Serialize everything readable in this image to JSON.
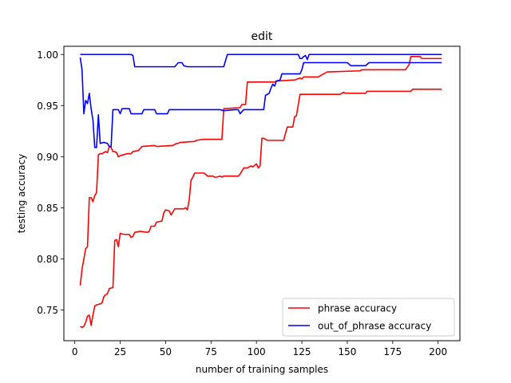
{
  "chart_data": {
    "type": "line",
    "title": "edit",
    "xlabel": "number of training samples",
    "ylabel": "testing accuracy",
    "xlim": [
      -6,
      212
    ],
    "ylim": [
      0.72,
      1.008
    ],
    "xticks": [
      0,
      25,
      50,
      75,
      100,
      125,
      150,
      175,
      200
    ],
    "xtick_labels": [
      "0",
      "25",
      "50",
      "75",
      "100",
      "125",
      "150",
      "175",
      "200"
    ],
    "yticks": [
      0.75,
      0.8,
      0.85,
      0.9,
      0.95,
      1.0
    ],
    "ytick_labels": [
      "0.75",
      "0.80",
      "0.85",
      "0.90",
      "0.95",
      "1.00"
    ],
    "grid": false,
    "legend_position": "lower-right",
    "series": [
      {
        "name": "phrase accuracy",
        "color": "#ff0000",
        "points": [
          [
            3,
            0.734
          ],
          [
            4,
            0.733
          ],
          [
            5,
            0.734
          ],
          [
            6,
            0.738
          ],
          [
            7,
            0.744
          ],
          [
            8,
            0.745
          ],
          [
            9,
            0.735
          ],
          [
            10,
            0.745
          ],
          [
            11,
            0.754
          ],
          [
            12,
            0.755
          ],
          [
            14,
            0.756
          ],
          [
            15,
            0.757
          ],
          [
            16,
            0.763
          ],
          [
            17,
            0.765
          ],
          [
            18,
            0.766
          ],
          [
            19,
            0.771
          ],
          [
            21,
            0.772
          ],
          [
            22,
            0.818
          ],
          [
            23,
            0.819
          ],
          [
            24,
            0.812
          ],
          [
            25,
            0.825
          ],
          [
            27,
            0.824
          ],
          [
            30,
            0.824
          ],
          [
            31,
            0.821
          ],
          [
            32,
            0.822
          ],
          [
            33,
            0.826
          ],
          [
            36,
            0.827
          ],
          [
            40,
            0.826
          ],
          [
            41,
            0.827
          ],
          [
            42,
            0.832
          ],
          [
            44,
            0.832
          ],
          [
            45,
            0.836
          ],
          [
            48,
            0.837
          ],
          [
            49,
            0.845
          ],
          [
            50,
            0.848
          ],
          [
            52,
            0.847
          ],
          [
            53,
            0.843
          ],
          [
            55,
            0.849
          ],
          [
            60,
            0.849
          ],
          [
            61,
            0.85
          ],
          [
            62,
            0.848
          ],
          [
            63,
            0.858
          ],
          [
            64,
            0.877
          ],
          [
            65,
            0.88
          ],
          [
            66,
            0.884
          ],
          [
            71,
            0.884
          ],
          [
            72,
            0.883
          ],
          [
            73,
            0.881
          ],
          [
            76,
            0.881
          ],
          [
            77,
            0.88
          ],
          [
            78,
            0.88
          ],
          [
            80,
            0.881
          ],
          [
            81,
            0.88
          ],
          [
            82,
            0.881
          ],
          [
            85,
            0.881
          ],
          [
            86,
            0.881
          ],
          [
            90,
            0.881
          ],
          [
            91,
            0.883
          ],
          [
            93,
            0.889
          ],
          [
            95,
            0.889
          ],
          [
            97,
            0.891
          ],
          [
            98,
            0.89
          ],
          [
            100,
            0.893
          ],
          [
            101,
            0.889
          ],
          [
            102,
            0.891
          ],
          [
            103,
            0.918
          ],
          [
            104,
            0.918
          ],
          [
            106,
            0.916
          ],
          [
            114,
            0.916
          ],
          [
            115,
            0.916
          ],
          [
            116,
            0.923
          ],
          [
            117,
            0.929
          ],
          [
            120,
            0.929
          ],
          [
            121,
            0.939
          ],
          [
            122,
            0.94
          ],
          [
            124,
            0.961
          ],
          [
            145,
            0.961
          ],
          [
            146,
            0.961
          ],
          [
            148,
            0.963
          ],
          [
            149,
            0.962
          ],
          [
            160,
            0.962
          ],
          [
            161,
            0.964
          ],
          [
            185,
            0.964
          ],
          [
            186,
            0.966
          ],
          [
            202,
            0.966
          ]
        ]
      },
      {
        "name": "phrase accuracy (upper)",
        "color": "#ff0000",
        "points": [
          [
            3,
            0.774
          ],
          [
            4,
            0.79
          ],
          [
            5,
            0.8
          ],
          [
            6,
            0.81
          ],
          [
            7,
            0.812
          ],
          [
            8,
            0.86
          ],
          [
            9,
            0.86
          ],
          [
            10,
            0.856
          ],
          [
            11,
            0.862
          ],
          [
            12,
            0.865
          ],
          [
            13,
            0.902
          ],
          [
            14,
            0.903
          ],
          [
            15,
            0.903
          ],
          [
            16,
            0.904
          ],
          [
            17,
            0.905
          ],
          [
            18,
            0.904
          ],
          [
            19,
            0.91
          ],
          [
            20,
            0.909
          ],
          [
            21,
            0.905
          ],
          [
            22,
            0.905
          ],
          [
            23,
            0.904
          ],
          [
            24,
            0.9
          ],
          [
            25,
            0.901
          ],
          [
            27,
            0.902
          ],
          [
            29,
            0.903
          ],
          [
            31,
            0.903
          ],
          [
            32,
            0.905
          ],
          [
            35,
            0.906
          ],
          [
            36,
            0.908
          ],
          [
            37,
            0.91
          ],
          [
            44,
            0.911
          ],
          [
            45,
            0.91
          ],
          [
            54,
            0.911
          ],
          [
            55,
            0.912
          ],
          [
            56,
            0.913
          ],
          [
            57,
            0.913
          ],
          [
            58,
            0.914
          ],
          [
            59,
            0.914
          ],
          [
            66,
            0.915
          ],
          [
            67,
            0.916
          ],
          [
            71,
            0.917
          ],
          [
            81,
            0.917
          ],
          [
            82,
            0.947
          ],
          [
            91,
            0.948
          ],
          [
            92,
            0.951
          ],
          [
            94,
            0.951
          ],
          [
            95,
            0.973
          ],
          [
            110,
            0.973
          ],
          [
            111,
            0.974
          ],
          [
            120,
            0.975
          ],
          [
            121,
            0.975
          ],
          [
            124,
            0.977
          ],
          [
            125,
            0.976
          ],
          [
            126,
            0.978
          ],
          [
            127,
            0.978
          ],
          [
            134,
            0.978
          ],
          [
            136,
            0.98
          ],
          [
            137,
            0.981
          ],
          [
            139,
            0.983
          ],
          [
            140,
            0.983
          ],
          [
            157,
            0.984
          ],
          [
            158,
            0.985
          ],
          [
            182,
            0.985
          ],
          [
            184,
            0.99
          ],
          [
            185,
            0.998
          ],
          [
            186,
            0.998
          ],
          [
            190,
            0.998
          ],
          [
            191,
            0.996
          ],
          [
            202,
            0.996
          ]
        ]
      },
      {
        "name": "out_of_phrase accuracy",
        "color": "#0000ff",
        "points": [
          [
            3,
            1.0
          ],
          [
            31,
            1.0
          ],
          [
            32,
            0.999
          ],
          [
            33,
            0.988
          ],
          [
            55,
            0.988
          ],
          [
            57,
            0.992
          ],
          [
            59,
            0.992
          ],
          [
            60,
            0.989
          ],
          [
            62,
            0.988
          ],
          [
            63,
            0.988
          ],
          [
            82,
            0.988
          ],
          [
            84,
            1.0
          ],
          [
            123,
            1.0
          ],
          [
            124,
            0.996
          ],
          [
            125,
            0.996
          ],
          [
            126,
            0.998
          ],
          [
            127,
            0.999
          ],
          [
            128,
            0.995
          ],
          [
            129,
            1.0
          ],
          [
            202,
            1.0
          ]
        ]
      },
      {
        "name": "out_of_phrase accuracy (lower)",
        "color": "#0000ff",
        "points": [
          [
            3,
            0.997
          ],
          [
            4,
            0.985
          ],
          [
            5,
            0.942
          ],
          [
            6,
            0.955
          ],
          [
            7,
            0.952
          ],
          [
            8,
            0.962
          ],
          [
            9,
            0.947
          ],
          [
            10,
            0.936
          ],
          [
            11,
            0.909
          ],
          [
            12,
            0.909
          ],
          [
            13,
            0.941
          ],
          [
            14,
            0.913
          ],
          [
            16,
            0.914
          ],
          [
            18,
            0.913
          ],
          [
            19,
            0.91
          ],
          [
            20,
            0.91
          ],
          [
            21,
            0.946
          ],
          [
            24,
            0.946
          ],
          [
            25,
            0.942
          ],
          [
            26,
            0.947
          ],
          [
            30,
            0.947
          ],
          [
            31,
            0.942
          ],
          [
            37,
            0.942
          ],
          [
            38,
            0.946
          ],
          [
            44,
            0.946
          ],
          [
            45,
            0.942
          ],
          [
            51,
            0.942
          ],
          [
            52,
            0.946
          ],
          [
            60,
            0.946
          ],
          [
            62,
            0.946
          ],
          [
            80,
            0.946
          ],
          [
            82,
            0.945
          ],
          [
            88,
            0.946
          ],
          [
            89,
            0.946
          ],
          [
            90,
            0.946
          ],
          [
            91,
            0.942
          ],
          [
            93,
            0.946
          ],
          [
            100,
            0.946
          ],
          [
            104,
            0.946
          ],
          [
            105,
            0.96
          ],
          [
            107,
            0.962
          ],
          [
            108,
            0.967
          ],
          [
            109,
            0.971
          ],
          [
            110,
            0.969
          ],
          [
            111,
            0.974
          ],
          [
            113,
            0.975
          ],
          [
            114,
            0.981
          ],
          [
            124,
            0.981
          ],
          [
            125,
            0.985
          ],
          [
            126,
            0.992
          ],
          [
            130,
            0.992
          ],
          [
            150,
            0.992
          ],
          [
            152,
            0.989
          ],
          [
            160,
            0.989
          ],
          [
            162,
            0.992
          ],
          [
            202,
            0.992
          ]
        ]
      }
    ],
    "legend": [
      {
        "label": "phrase accuracy",
        "color": "#ff0000"
      },
      {
        "label": "out_of_phrase accuracy",
        "color": "#0000ff"
      }
    ]
  }
}
